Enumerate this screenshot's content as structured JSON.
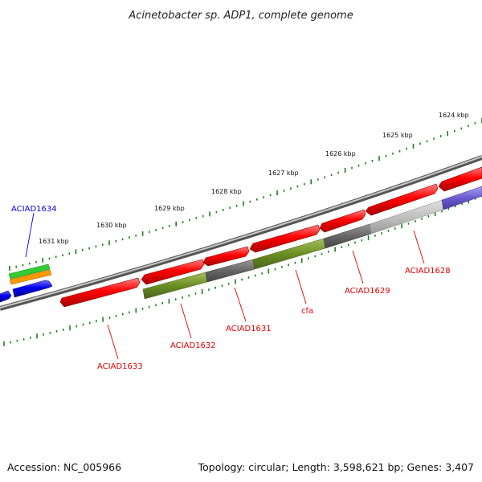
{
  "title": "Acinetobacter sp. ADP1, complete genome",
  "footer": {
    "accession": "Accession: NC_005966",
    "summary": "Topology: circular; Length: 3,598,621 bp; Genes: 3,407"
  },
  "ruler_labels": [
    "1631 kbp",
    "1630 kbp",
    "1629 kbp",
    "1628 kbp",
    "1627 kbp",
    "1626 kbp",
    "1625 kbp",
    "1624 kbp"
  ],
  "gene_labels": [
    {
      "text": "ACIAD1634",
      "color": "#0000ee"
    },
    {
      "text": "ACIAD1633",
      "color": "#dd0000"
    },
    {
      "text": "ACIAD1632",
      "color": "#dd0000"
    },
    {
      "text": "ACIAD1631",
      "color": "#dd0000"
    },
    {
      "text": "cfa",
      "color": "#dd0000"
    },
    {
      "text": "ACIAD1629",
      "color": "#dd0000"
    },
    {
      "text": "ACIAD1628",
      "color": "#dd0000"
    }
  ],
  "colors": {
    "forward_cds": "#ff0000",
    "reverse_cds": "#0000ee",
    "backbone": "#777777",
    "tick": "#1a7f1a",
    "cog_olive": "#6b8e23",
    "cog_gray": "#666666",
    "cog_light": "#bbbbbb",
    "cog_purple": "#6a5acd",
    "cog_green": "#33cc33",
    "cog_orange": "#ff9900"
  }
}
